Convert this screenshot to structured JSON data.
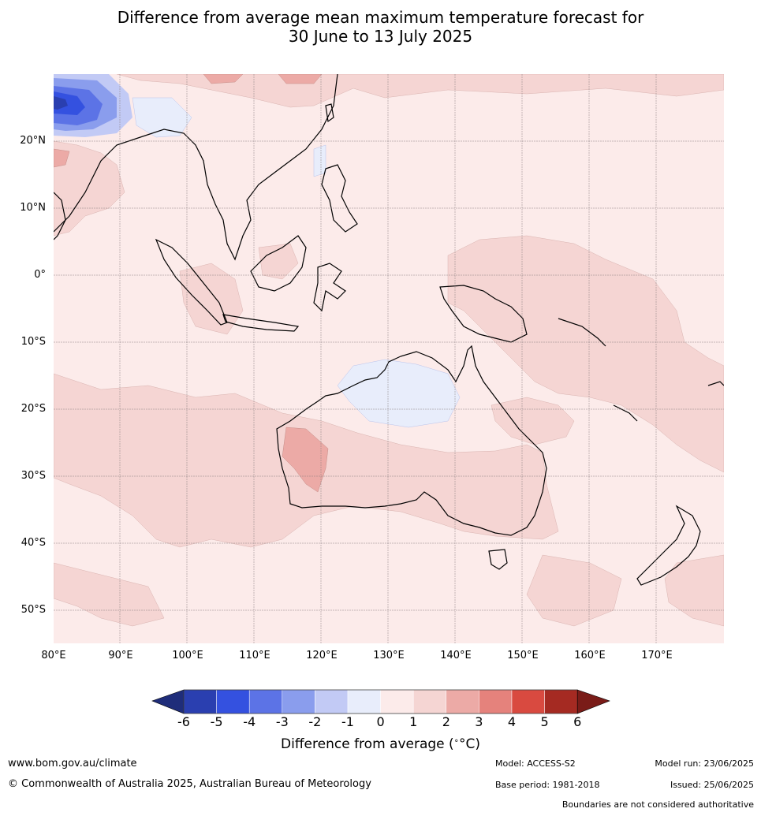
{
  "title_line1": "Difference from average mean maximum temperature forecast for",
  "title_line2": "30 June to 13 July 2025",
  "lat_labels": [
    "20°N",
    "10°N",
    "0°",
    "10°S",
    "20°S",
    "30°S",
    "40°S",
    "50°S"
  ],
  "lon_labels": [
    "80°E",
    "90°E",
    "100°E",
    "110°E",
    "120°E",
    "130°E",
    "140°E",
    "150°E",
    "160°E",
    "170°E"
  ],
  "colorbar": {
    "ticks": [
      "-6",
      "-5",
      "-4",
      "-3",
      "-2",
      "-1",
      "0",
      "1",
      "2",
      "3",
      "4",
      "5",
      "6"
    ],
    "colors": [
      "#1f2d7a",
      "#2a3fb0",
      "#3451e0",
      "#5c73e6",
      "#8a9ded",
      "#c2caf5",
      "#e8edfb",
      "#fcebea",
      "#f5d5d3",
      "#ecaaa6",
      "#e5827c",
      "#d94a40",
      "#a52a22",
      "#7a1c18"
    ],
    "label": "Difference from average (",
    "label_unit": "°C",
    "label_close": ")"
  },
  "footer": {
    "url": "www.bom.gov.au/climate",
    "copyright": "© Commonwealth of Australia 2025, Australian Bureau of Meteorology",
    "model": "Model: ACCESS-S2",
    "model_run": "Model run: 23/06/2025",
    "base_period": "Base period: 1981-2018",
    "issued": "Issued: 25/06/2025",
    "disclaimer": "Boundaries are not considered authoritative"
  }
}
